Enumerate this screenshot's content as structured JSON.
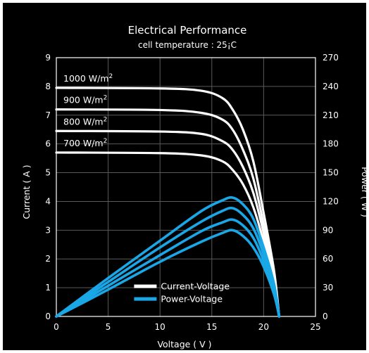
{
  "chart_data": {
    "type": "line",
    "title": "Electrical Performance",
    "subtitle": "cell temperature : 25¡C",
    "xlabel": "Voltage ( V )",
    "ylabel": "Current ( A )",
    "y2label": "Power ( W )",
    "xlim": [
      0,
      25
    ],
    "ylim": [
      0,
      9
    ],
    "y2lim": [
      0,
      270
    ],
    "xticks": [
      "0",
      "5",
      "10",
      "15",
      "20",
      "25"
    ],
    "yticks": [
      "0",
      "1",
      "2",
      "3",
      "4",
      "5",
      "6",
      "7",
      "8",
      "9"
    ],
    "y2ticks": [
      "0",
      "30",
      "60",
      "90",
      "120",
      "150",
      "180",
      "210",
      "240",
      "270"
    ],
    "grid": true,
    "legend": {
      "position": "bottom-left",
      "entries": [
        {
          "name": "Current-Voltage",
          "color": "#ffffff"
        },
        {
          "name": "Power-Voltage",
          "color": "#1aa7e8"
        }
      ]
    },
    "colors": {
      "background": "#000000",
      "grid": "#5a5a5a",
      "current": "#ffffff",
      "power": "#1aa7e8"
    },
    "irradiance_labels": [
      {
        "text": "1000 W/m",
        "sup": "2"
      },
      {
        "text": "900 W/m",
        "sup": "2"
      },
      {
        "text": "800 W/m",
        "sup": "2"
      },
      {
        "text": "700 W/m",
        "sup": "2"
      }
    ],
    "series": [
      {
        "name": "1000 W/m2 current",
        "axis": "left",
        "color": "#ffffff",
        "points": [
          [
            0,
            7.95
          ],
          [
            10,
            7.93
          ],
          [
            14,
            7.85
          ],
          [
            16,
            7.6
          ],
          [
            17,
            7.2
          ],
          [
            18,
            6.5
          ],
          [
            19,
            5.4
          ],
          [
            20,
            3.6
          ],
          [
            21,
            1.6
          ],
          [
            21.5,
            0
          ]
        ]
      },
      {
        "name": "900 W/m2 current",
        "axis": "left",
        "color": "#ffffff",
        "points": [
          [
            0,
            7.2
          ],
          [
            10,
            7.18
          ],
          [
            14,
            7.08
          ],
          [
            16,
            6.85
          ],
          [
            17,
            6.5
          ],
          [
            18,
            5.8
          ],
          [
            19,
            4.8
          ],
          [
            20,
            3.2
          ],
          [
            21,
            1.4
          ],
          [
            21.5,
            0
          ]
        ]
      },
      {
        "name": "800 W/m2 current",
        "axis": "left",
        "color": "#ffffff",
        "points": [
          [
            0,
            6.45
          ],
          [
            10,
            6.43
          ],
          [
            14,
            6.35
          ],
          [
            16,
            6.1
          ],
          [
            17,
            5.8
          ],
          [
            18,
            5.2
          ],
          [
            19,
            4.3
          ],
          [
            20,
            2.9
          ],
          [
            21,
            1.2
          ],
          [
            21.5,
            0
          ]
        ]
      },
      {
        "name": "700 W/m2 current",
        "axis": "left",
        "color": "#ffffff",
        "points": [
          [
            0,
            5.7
          ],
          [
            10,
            5.68
          ],
          [
            14,
            5.6
          ],
          [
            16,
            5.4
          ],
          [
            17,
            5.1
          ],
          [
            18,
            4.6
          ],
          [
            19,
            3.8
          ],
          [
            20,
            2.6
          ],
          [
            21,
            1.1
          ],
          [
            21.5,
            0
          ]
        ]
      },
      {
        "name": "1000 W/m2 power",
        "axis": "right",
        "color": "#1aa7e8",
        "points": [
          [
            0,
            0
          ],
          [
            5,
            40
          ],
          [
            10,
            79
          ],
          [
            14,
            110
          ],
          [
            16,
            121
          ],
          [
            17,
            124
          ],
          [
            18,
            117
          ],
          [
            19,
            102
          ],
          [
            20,
            72
          ],
          [
            21,
            34
          ],
          [
            21.5,
            0
          ]
        ]
      },
      {
        "name": "900 W/m2 power",
        "axis": "right",
        "color": "#1aa7e8",
        "points": [
          [
            0,
            0
          ],
          [
            5,
            36
          ],
          [
            10,
            72
          ],
          [
            14,
            99
          ],
          [
            16,
            110
          ],
          [
            17,
            113
          ],
          [
            18,
            106
          ],
          [
            19,
            92
          ],
          [
            20,
            65
          ],
          [
            21,
            30
          ],
          [
            21.5,
            0
          ]
        ]
      },
      {
        "name": "800 W/m2 power",
        "axis": "right",
        "color": "#1aa7e8",
        "points": [
          [
            0,
            0
          ],
          [
            5,
            32
          ],
          [
            10,
            64
          ],
          [
            14,
            89
          ],
          [
            16,
            98
          ],
          [
            17,
            101
          ],
          [
            18,
            95
          ],
          [
            19,
            82
          ],
          [
            20,
            58
          ],
          [
            21,
            26
          ],
          [
            21.5,
            0
          ]
        ]
      },
      {
        "name": "700 W/m2 power",
        "axis": "right",
        "color": "#1aa7e8",
        "points": [
          [
            0,
            0
          ],
          [
            5,
            28
          ],
          [
            10,
            57
          ],
          [
            14,
            78
          ],
          [
            16,
            87
          ],
          [
            17,
            90
          ],
          [
            18,
            84
          ],
          [
            19,
            72
          ],
          [
            20,
            52
          ],
          [
            21,
            23
          ],
          [
            21.5,
            0
          ]
        ]
      }
    ]
  }
}
